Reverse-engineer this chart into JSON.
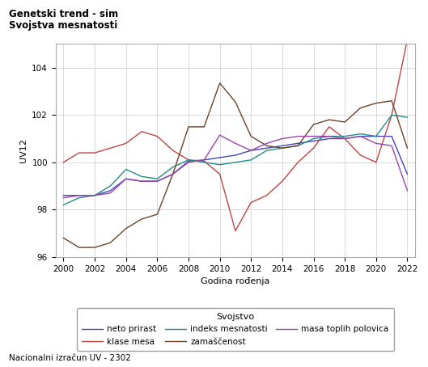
{
  "title_line1": "Genetski trend - sim",
  "title_line2": "Svojstva mesnatosti",
  "xlabel": "Godina rođenja",
  "ylabel": "UV12",
  "footer": "Nacionalni izračun UV - 2302",
  "legend_title": "Svojstvo",
  "xlim": [
    1999.5,
    2022.5
  ],
  "ylim": [
    96,
    105
  ],
  "xticks": [
    2000,
    2002,
    2004,
    2006,
    2008,
    2010,
    2012,
    2014,
    2016,
    2018,
    2020,
    2022
  ],
  "yticks": [
    96,
    98,
    100,
    102,
    104
  ],
  "years": [
    2000,
    2001,
    2002,
    2003,
    2004,
    2005,
    2006,
    2007,
    2008,
    2009,
    2010,
    2011,
    2012,
    2013,
    2014,
    2015,
    2016,
    2017,
    2018,
    2019,
    2020,
    2021,
    2022
  ],
  "series": [
    {
      "name": "neto prirast",
      "color": "#4444bb",
      "values": [
        98.6,
        98.6,
        98.6,
        98.8,
        99.3,
        99.2,
        99.2,
        99.5,
        100.05,
        100.1,
        100.2,
        100.3,
        100.5,
        100.6,
        100.7,
        100.8,
        100.9,
        101.0,
        101.0,
        101.1,
        101.1,
        101.1,
        99.5
      ]
    },
    {
      "name": "klase mesa",
      "color": "#bb4444",
      "values": [
        100.0,
        100.4,
        100.4,
        100.6,
        100.8,
        101.3,
        101.1,
        100.5,
        100.1,
        100.05,
        99.5,
        97.1,
        98.3,
        98.6,
        99.2,
        100.0,
        100.6,
        101.5,
        101.0,
        100.3,
        100.0,
        102.0,
        105.2
      ]
    },
    {
      "name": "indeks mesnatosti",
      "color": "#228B88",
      "values": [
        98.2,
        98.5,
        98.6,
        99.0,
        99.7,
        99.4,
        99.3,
        99.8,
        100.1,
        100.0,
        99.9,
        100.0,
        100.1,
        100.5,
        100.6,
        100.7,
        101.0,
        101.1,
        101.1,
        101.2,
        101.1,
        102.0,
        101.9
      ]
    },
    {
      "name": "zamaščenost",
      "color": "#6B4226",
      "values": [
        96.8,
        96.4,
        96.4,
        96.6,
        97.2,
        97.6,
        97.8,
        99.5,
        101.5,
        101.5,
        103.35,
        102.55,
        101.1,
        100.7,
        100.6,
        100.7,
        101.6,
        101.8,
        101.7,
        102.3,
        102.5,
        102.6,
        100.6
      ]
    },
    {
      "name": "masa toplih polovica",
      "color": "#9944aa",
      "values": [
        98.5,
        98.6,
        98.6,
        98.7,
        99.3,
        99.2,
        99.2,
        99.5,
        100.0,
        100.1,
        101.15,
        100.8,
        100.5,
        100.8,
        101.0,
        101.1,
        101.1,
        101.1,
        101.0,
        101.1,
        100.8,
        100.7,
        98.8
      ]
    }
  ]
}
